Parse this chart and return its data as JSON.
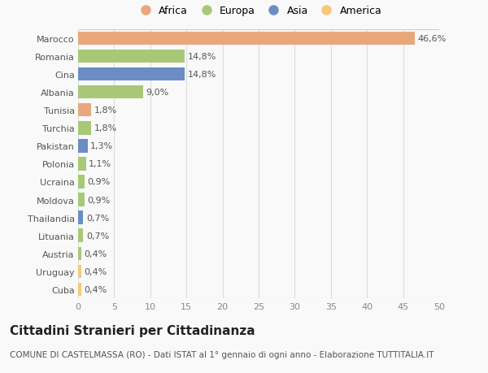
{
  "countries": [
    "Cuba",
    "Uruguay",
    "Austria",
    "Lituania",
    "Thailandia",
    "Moldova",
    "Ucraina",
    "Polonia",
    "Pakistan",
    "Turchia",
    "Tunisia",
    "Albania",
    "Cina",
    "Romania",
    "Marocco"
  ],
  "values": [
    0.4,
    0.4,
    0.4,
    0.7,
    0.7,
    0.9,
    0.9,
    1.1,
    1.3,
    1.8,
    1.8,
    9.0,
    14.8,
    14.8,
    46.6
  ],
  "labels": [
    "0,4%",
    "0,4%",
    "0,4%",
    "0,7%",
    "0,7%",
    "0,9%",
    "0,9%",
    "1,1%",
    "1,3%",
    "1,8%",
    "1,8%",
    "9,0%",
    "14,8%",
    "14,8%",
    "46,6%"
  ],
  "colors": [
    "#f5c87a",
    "#f5c87a",
    "#a8c878",
    "#a8c878",
    "#6a8ec4",
    "#a8c878",
    "#a8c878",
    "#a8c878",
    "#6a8ec4",
    "#a8c878",
    "#e8a87c",
    "#a8c878",
    "#6a8ec4",
    "#a8c878",
    "#e8a87c"
  ],
  "legend_labels": [
    "Africa",
    "Europa",
    "Asia",
    "America"
  ],
  "legend_colors": [
    "#e8a87c",
    "#a8c878",
    "#6a8ec4",
    "#f5c87a"
  ],
  "title": "Cittadini Stranieri per Cittadinanza",
  "subtitle": "COMUNE DI CASTELMASSA (RO) - Dati ISTAT al 1° gennaio di ogni anno - Elaborazione TUTTITALIA.IT",
  "xlim": [
    0,
    50
  ],
  "xticks": [
    0,
    5,
    10,
    15,
    20,
    25,
    30,
    35,
    40,
    45,
    50
  ],
  "background_color": "#f9f9f9",
  "grid_color": "#dddddd",
  "bar_height": 0.75,
  "label_fontsize": 8,
  "tick_fontsize": 8,
  "ytick_fontsize": 8,
  "title_fontsize": 11,
  "subtitle_fontsize": 7.5
}
